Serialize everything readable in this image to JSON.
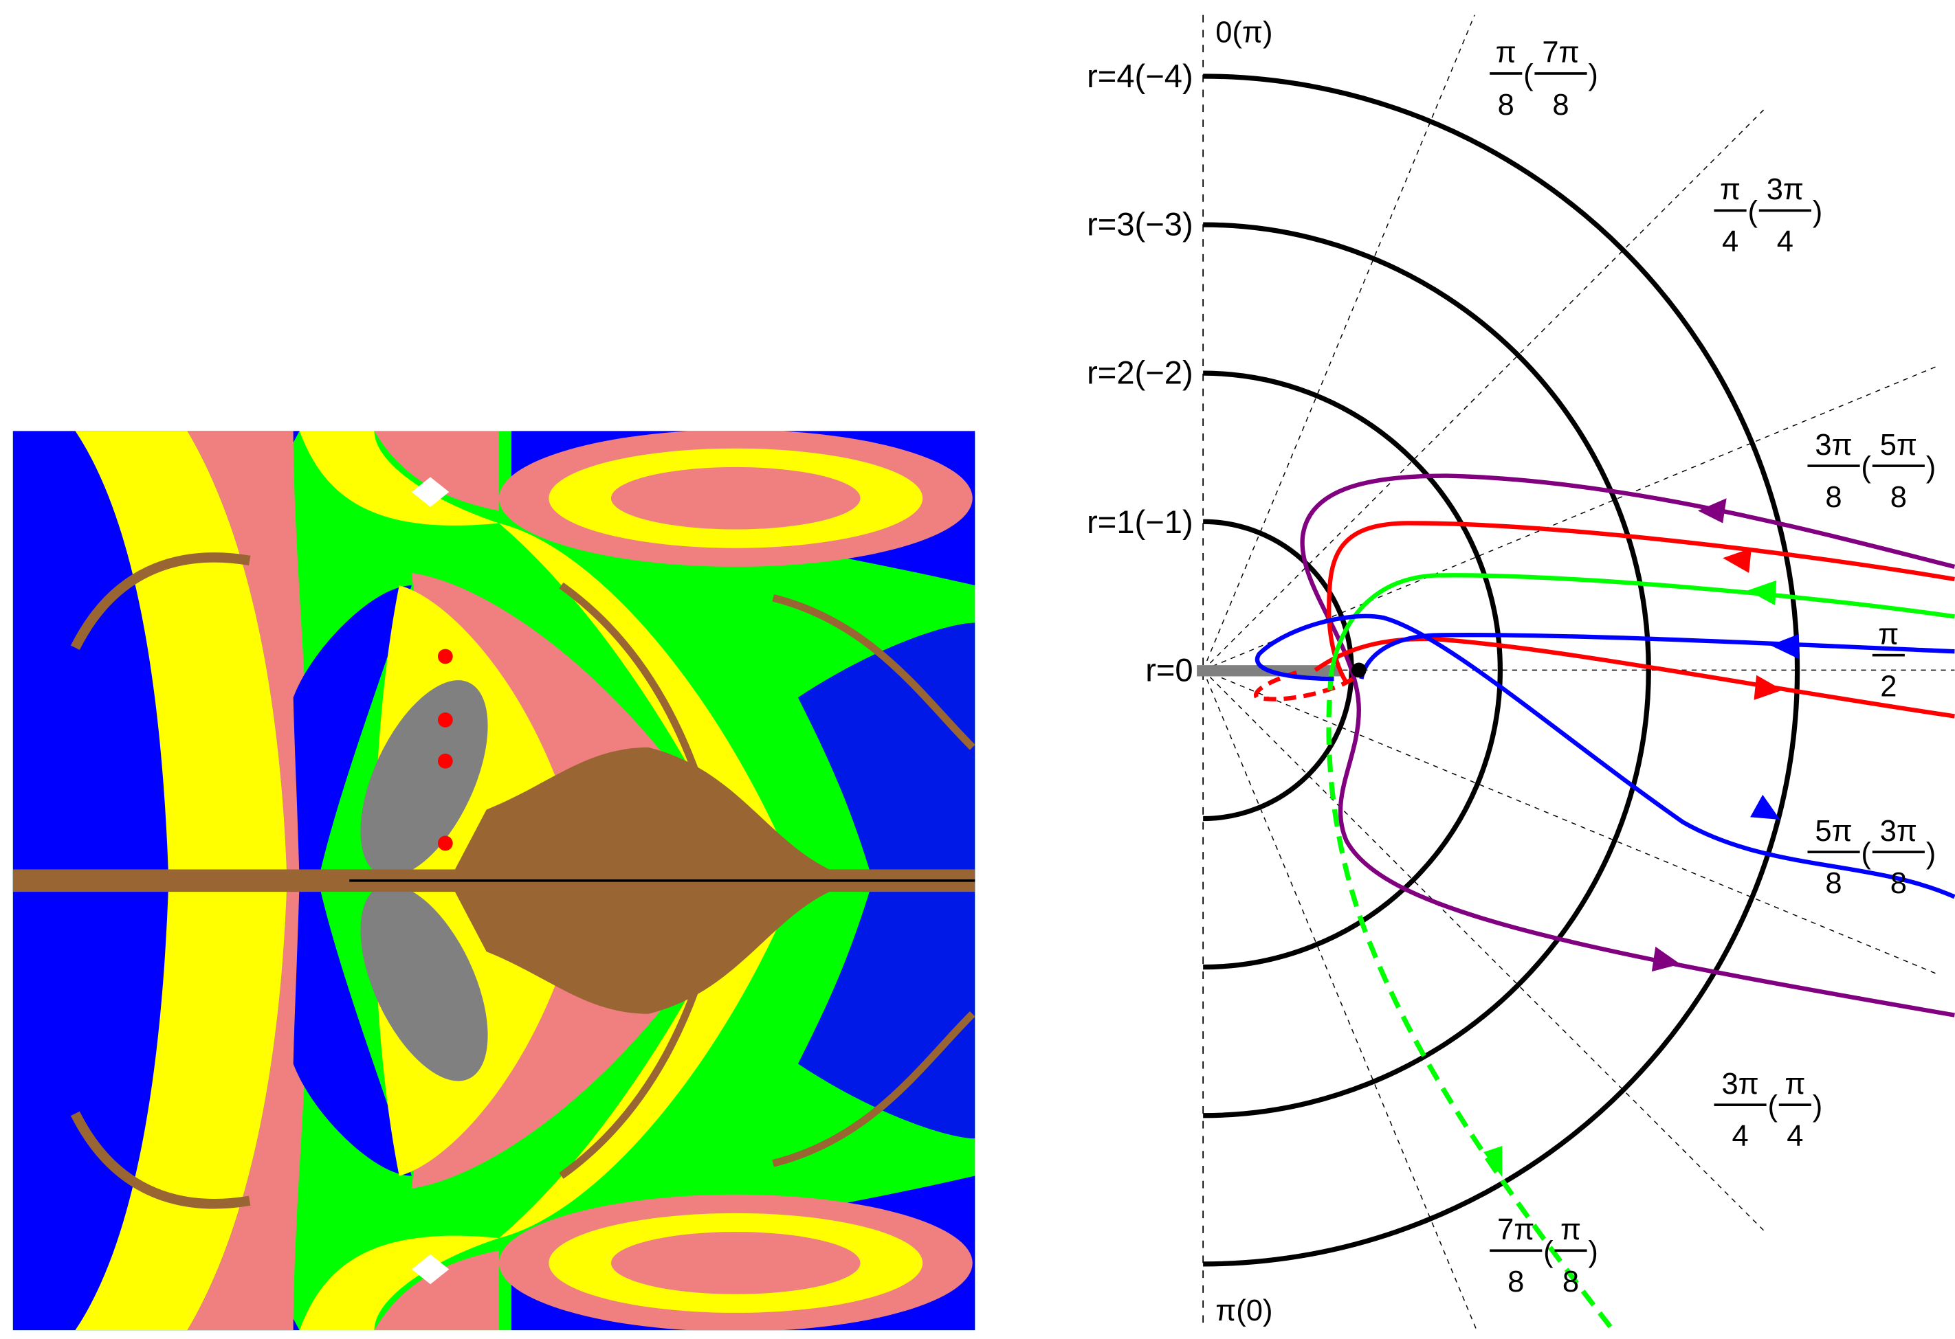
{
  "colors": {
    "basin_blue": "#0000ff",
    "basin_yellow": "#ffff00",
    "basin_pink": "#f08080",
    "basin_green": "#00ff00",
    "basin_brown": "#996633",
    "basin_gray": "#808080",
    "purple": "#800080",
    "red": "#ff0000",
    "green": "#00ff00",
    "blue": "#0000ff",
    "marker_red": "#ff0000"
  },
  "polar": {
    "radius_labels": [
      "r=0",
      "r=1(−1)",
      "r=2(−2)",
      "r=3(−3)",
      "r=4(−4)"
    ],
    "top_label": "0(π)",
    "bottom_label": "π(0)",
    "angle_labels": [
      {
        "num": "π",
        "den": "8",
        "num2": "7π",
        "den2": "8"
      },
      {
        "num": "π",
        "den": "4",
        "num2": "3π",
        "den2": "4"
      },
      {
        "num": "3π",
        "den": "8",
        "num2": "5π",
        "den2": "8"
      },
      {
        "num": "π",
        "den": "2"
      },
      {
        "num": "5π",
        "den": "8",
        "num2": "3π",
        "den2": "8"
      },
      {
        "num": "3π",
        "den": "4",
        "num2": "π",
        "den2": "4"
      },
      {
        "num": "7π",
        "den": "8",
        "num2": "π",
        "den2": "8"
      }
    ]
  }
}
